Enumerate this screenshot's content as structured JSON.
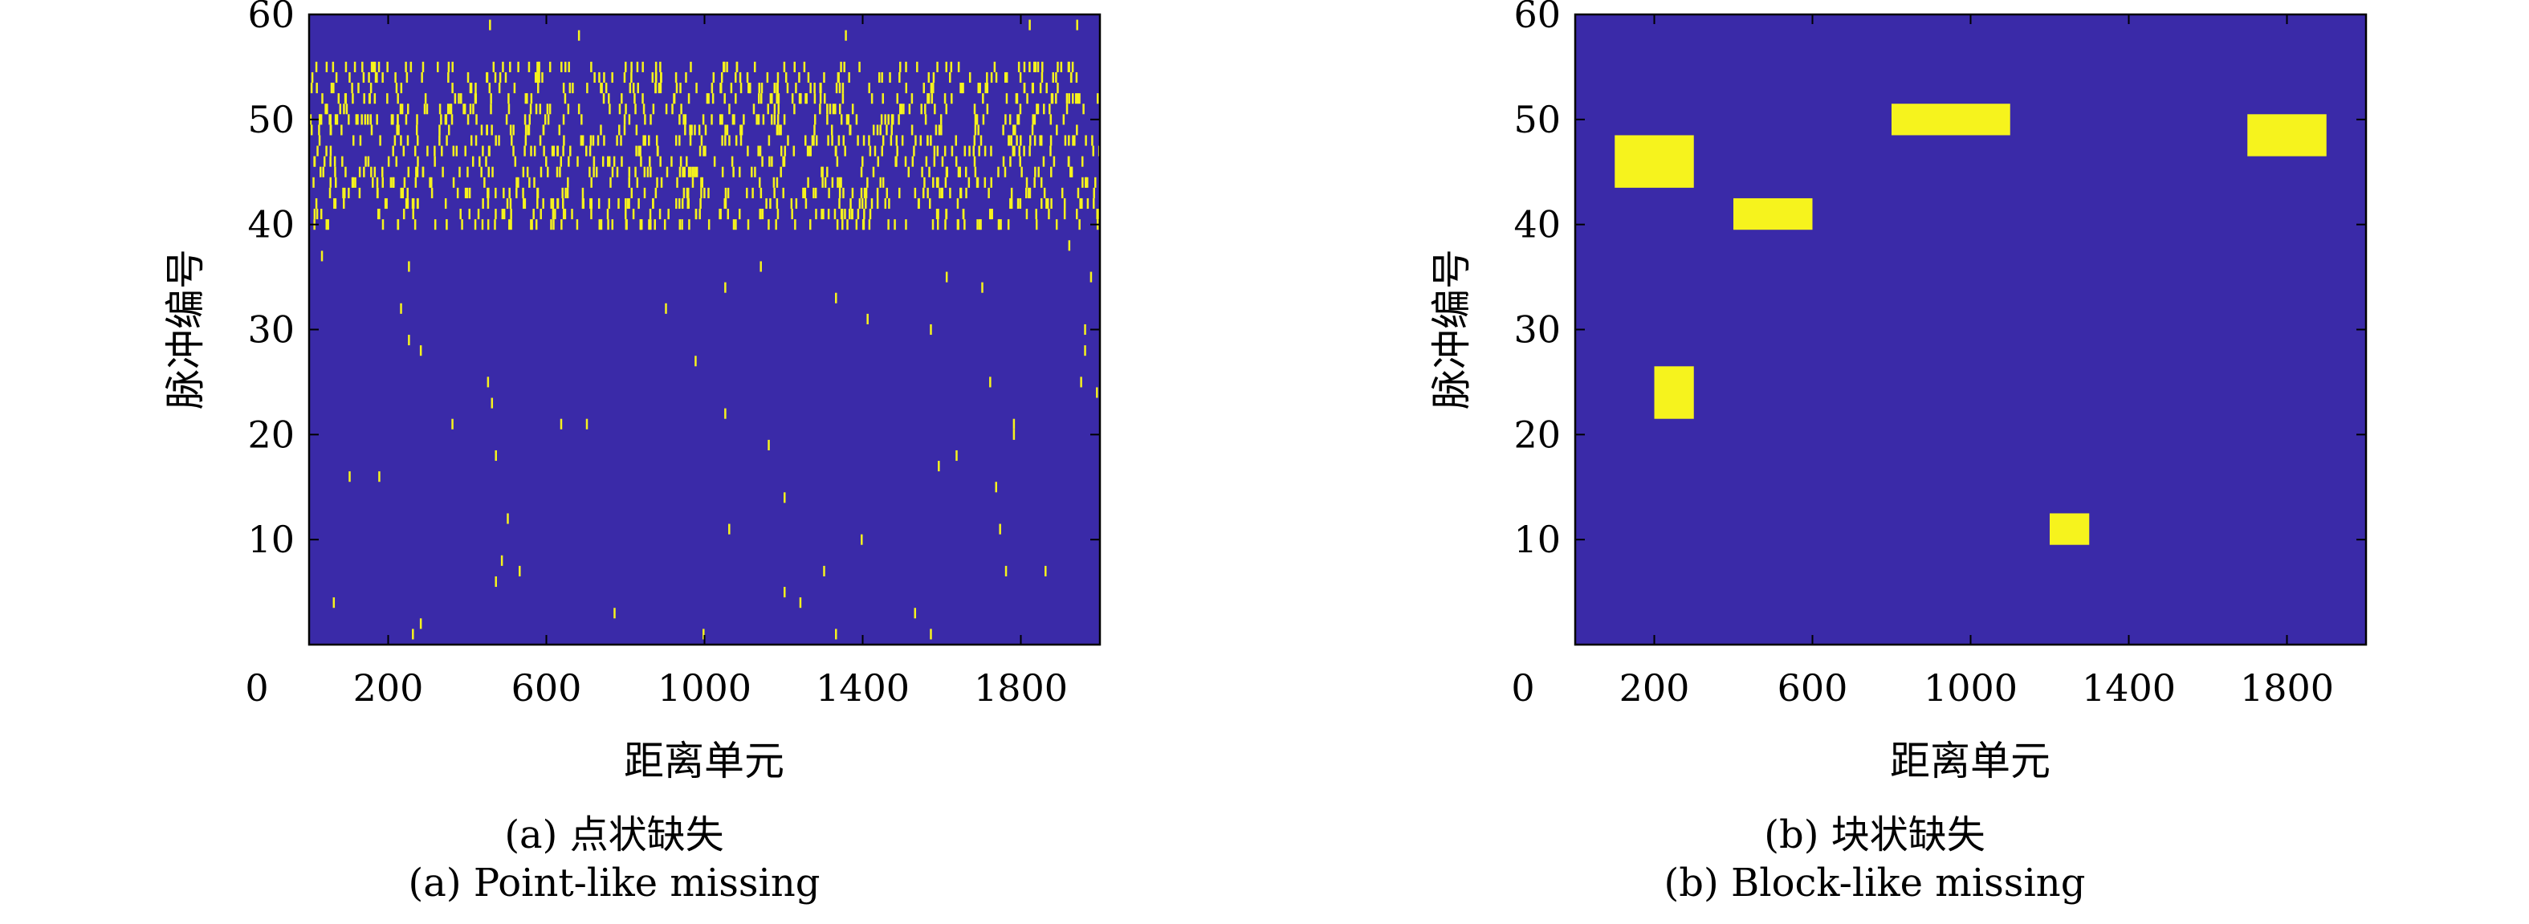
{
  "chart_data": [
    {
      "type": "heatmap",
      "xlabel": "距离单元",
      "ylabel": "脉冲编号",
      "xlim": [
        0,
        2000
      ],
      "ylim": [
        0,
        60
      ],
      "x_ticks": [
        "0",
        "200",
        "600",
        "1000",
        "1400",
        "1800"
      ],
      "y_ticks": [
        "10",
        "20",
        "30",
        "40",
        "50",
        "60"
      ],
      "background_color": "#3a2aa8",
      "marker_color": "#f6f31d",
      "caption_zh": "(a) 点状缺失",
      "caption_en": "(a) Point-like missing",
      "dense_band_pulses": [
        40,
        55
      ],
      "points": [
        [
          455,
          59
        ],
        [
          680,
          58
        ],
        [
          1355,
          58
        ],
        [
          1820,
          59
        ],
        [
          1940,
          59
        ],
        [
          30,
          37
        ],
        [
          250,
          36
        ],
        [
          1140,
          36
        ],
        [
          1610,
          35
        ],
        [
          1700,
          34
        ],
        [
          1920,
          38
        ],
        [
          1975,
          35
        ],
        [
          1050,
          34
        ],
        [
          1330,
          33
        ],
        [
          230,
          32
        ],
        [
          900,
          32
        ],
        [
          1410,
          31
        ],
        [
          1570,
          30
        ],
        [
          1960,
          30
        ],
        [
          250,
          29
        ],
        [
          280,
          28
        ],
        [
          1960,
          28
        ],
        [
          975,
          27
        ],
        [
          1720,
          25
        ],
        [
          450,
          25
        ],
        [
          1950,
          25
        ],
        [
          1990,
          24
        ],
        [
          460,
          23
        ],
        [
          1050,
          22
        ],
        [
          360,
          21
        ],
        [
          635,
          21
        ],
        [
          700,
          21
        ],
        [
          1780,
          21
        ],
        [
          1780,
          20
        ],
        [
          1160,
          19
        ],
        [
          470,
          18
        ],
        [
          1635,
          18
        ],
        [
          1590,
          17
        ],
        [
          100,
          16
        ],
        [
          175,
          16
        ],
        [
          1735,
          15
        ],
        [
          1200,
          14
        ],
        [
          500,
          12
        ],
        [
          1060,
          11
        ],
        [
          1745,
          11
        ],
        [
          1395,
          10
        ],
        [
          485,
          8
        ],
        [
          1760,
          7
        ],
        [
          1860,
          7
        ],
        [
          530,
          7
        ],
        [
          1300,
          7
        ],
        [
          470,
          6
        ],
        [
          1200,
          5
        ],
        [
          1240,
          4
        ],
        [
          60,
          4
        ],
        [
          770,
          3
        ],
        [
          1530,
          3
        ],
        [
          280,
          2
        ],
        [
          260,
          1
        ],
        [
          995,
          1
        ],
        [
          1330,
          1
        ],
        [
          1570,
          1
        ]
      ]
    },
    {
      "type": "heatmap",
      "xlabel": "距离单元",
      "ylabel": "脉冲编号",
      "xlim": [
        0,
        2000
      ],
      "ylim": [
        0,
        60
      ],
      "x_ticks": [
        "0",
        "200",
        "600",
        "1000",
        "1400",
        "1800"
      ],
      "y_ticks": [
        "10",
        "20",
        "30",
        "40",
        "50",
        "60"
      ],
      "background_color": "#3a2aa8",
      "marker_color": "#f6f31d",
      "caption_zh": "(b) 块状缺失",
      "caption_en": "(b) Block-like missing",
      "blocks": [
        {
          "x": [
            100,
            300
          ],
          "y": [
            43.5,
            48.5
          ]
        },
        {
          "x": [
            400,
            600
          ],
          "y": [
            39.5,
            42.5
          ]
        },
        {
          "x": [
            800,
            1100
          ],
          "y": [
            48.5,
            51.5
          ]
        },
        {
          "x": [
            1700,
            1900
          ],
          "y": [
            46.5,
            50.5
          ]
        },
        {
          "x": [
            200,
            300
          ],
          "y": [
            21.5,
            26.5
          ]
        },
        {
          "x": [
            1200,
            1300
          ],
          "y": [
            9.5,
            12.5
          ]
        }
      ]
    }
  ]
}
